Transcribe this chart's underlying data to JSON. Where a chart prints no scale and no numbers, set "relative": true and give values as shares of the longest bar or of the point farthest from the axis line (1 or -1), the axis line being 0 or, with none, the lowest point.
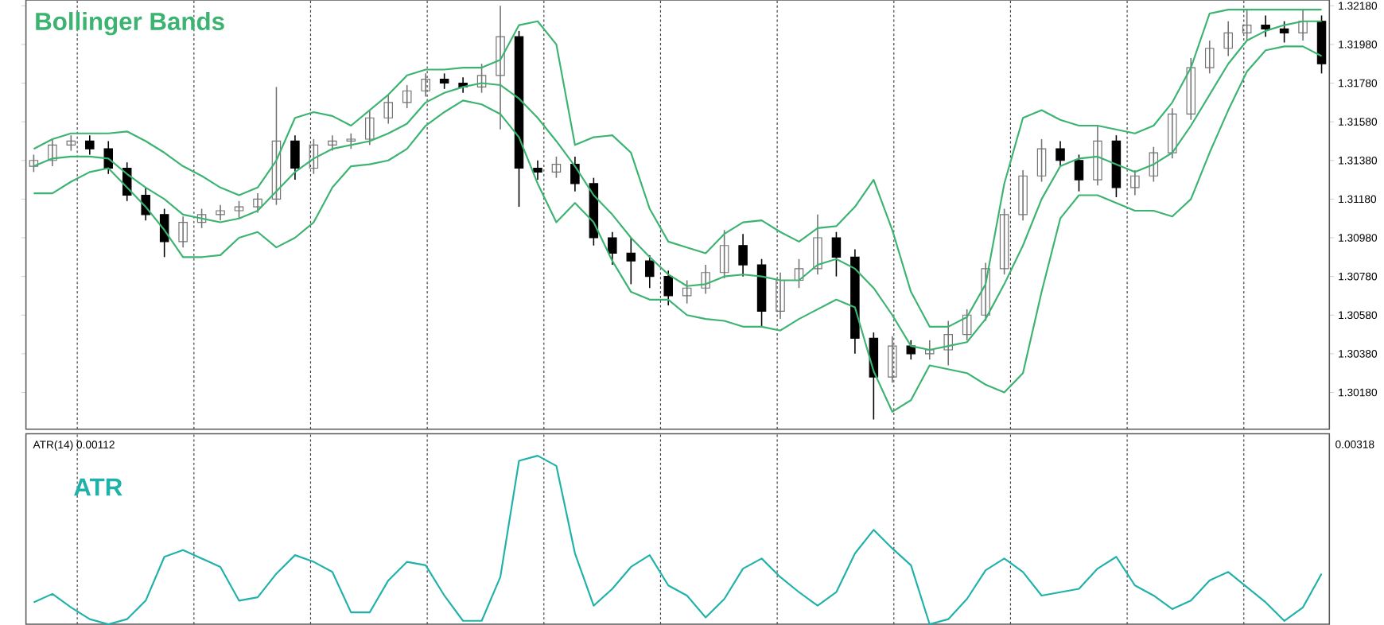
{
  "chart_data": [
    {
      "type": "candlestick",
      "title": "Bollinger Bands",
      "grid": "x",
      "categories": [
        null,
        null,
        null,
        null,
        null,
        null,
        null,
        null,
        null,
        null,
        null,
        null,
        null,
        null,
        null,
        null,
        null,
        null,
        null,
        null,
        null,
        null,
        null,
        null,
        null,
        null,
        null,
        null,
        null,
        null,
        null,
        null,
        null,
        null,
        null,
        null,
        null,
        null,
        null,
        null,
        null,
        null,
        null,
        null,
        null,
        null,
        null,
        null,
        null,
        null,
        null,
        null,
        null,
        null,
        null,
        null,
        null,
        null,
        null,
        null,
        null,
        null,
        null,
        null,
        null,
        null,
        null,
        null,
        null,
        null
      ],
      "ohlc": [
        [
          1.3135,
          1.3141,
          1.3132,
          1.3138
        ],
        [
          1.3138,
          1.3149,
          1.3135,
          1.3146
        ],
        [
          1.3146,
          1.3151,
          1.3143,
          1.3148
        ],
        [
          1.3148,
          1.3151,
          1.3141,
          1.3144
        ],
        [
          1.3144,
          1.3148,
          1.3131,
          1.3134
        ],
        [
          1.3134,
          1.3137,
          1.3117,
          1.312
        ],
        [
          1.312,
          1.3124,
          1.3107,
          1.311
        ],
        [
          1.311,
          1.3113,
          1.3088,
          1.3096
        ],
        [
          1.3096,
          1.3109,
          1.3093,
          1.3106
        ],
        [
          1.3106,
          1.3113,
          1.3103,
          1.311
        ],
        [
          1.311,
          1.3115,
          1.3107,
          1.3112
        ],
        [
          1.3112,
          1.3117,
          1.3108,
          1.3114
        ],
        [
          1.3114,
          1.3121,
          1.3111,
          1.3118
        ],
        [
          1.3118,
          1.3176,
          1.3115,
          1.3148
        ],
        [
          1.3148,
          1.3151,
          1.3128,
          1.3134
        ],
        [
          1.3134,
          1.3149,
          1.3131,
          1.3146
        ],
        [
          1.3146,
          1.3151,
          1.3143,
          1.3148
        ],
        [
          1.3148,
          1.3152,
          1.3144,
          1.3149
        ],
        [
          1.3149,
          1.3164,
          1.3146,
          1.316
        ],
        [
          1.316,
          1.3172,
          1.3157,
          1.3168
        ],
        [
          1.3168,
          1.3177,
          1.3165,
          1.3174
        ],
        [
          1.3174,
          1.3183,
          1.3171,
          1.318
        ],
        [
          1.318,
          1.3183,
          1.3175,
          1.3178
        ],
        [
          1.3178,
          1.3181,
          1.3173,
          1.3176
        ],
        [
          1.3176,
          1.3188,
          1.3173,
          1.3182
        ],
        [
          1.3182,
          1.3218,
          1.3154,
          1.3202
        ],
        [
          1.3202,
          1.3205,
          1.3114,
          1.3134
        ],
        [
          1.3134,
          1.3138,
          1.3128,
          1.3132
        ],
        [
          1.3132,
          1.314,
          1.3129,
          1.3136
        ],
        [
          1.3136,
          1.314,
          1.3122,
          1.3126
        ],
        [
          1.3126,
          1.3129,
          1.3094,
          1.3098
        ],
        [
          1.3098,
          1.3101,
          1.3084,
          1.309
        ],
        [
          1.309,
          1.3098,
          1.3074,
          1.3086
        ],
        [
          1.3086,
          1.3089,
          1.3072,
          1.3078
        ],
        [
          1.3078,
          1.3081,
          1.3063,
          1.3068
        ],
        [
          1.3068,
          1.3076,
          1.3064,
          1.3072
        ],
        [
          1.3072,
          1.3084,
          1.3069,
          1.308
        ],
        [
          1.308,
          1.3102,
          1.3077,
          1.3094
        ],
        [
          1.3094,
          1.31,
          1.3078,
          1.3084
        ],
        [
          1.3084,
          1.3087,
          1.3052,
          1.306
        ],
        [
          1.306,
          1.308,
          1.3056,
          1.3076
        ],
        [
          1.3076,
          1.3087,
          1.3072,
          1.3082
        ],
        [
          1.3082,
          1.311,
          1.3079,
          1.3098
        ],
        [
          1.3098,
          1.3101,
          1.3078,
          1.3088
        ],
        [
          1.3088,
          1.3092,
          1.3038,
          1.3046
        ],
        [
          1.3046,
          1.3049,
          1.3004,
          1.3026
        ],
        [
          1.3026,
          1.3047,
          1.3023,
          1.3042
        ],
        [
          1.3042,
          1.3045,
          1.3035,
          1.3038
        ],
        [
          1.3038,
          1.3045,
          1.3035,
          1.304
        ],
        [
          1.304,
          1.3055,
          1.3032,
          1.3048
        ],
        [
          1.3048,
          1.3061,
          1.3045,
          1.3058
        ],
        [
          1.3058,
          1.3085,
          1.3055,
          1.3082
        ],
        [
          1.3082,
          1.3113,
          1.3079,
          1.311
        ],
        [
          1.311,
          1.3133,
          1.3107,
          1.313
        ],
        [
          1.313,
          1.3149,
          1.3127,
          1.3144
        ],
        [
          1.3144,
          1.3148,
          1.3135,
          1.3138
        ],
        [
          1.3138,
          1.3141,
          1.3122,
          1.3128
        ],
        [
          1.3128,
          1.3156,
          1.3125,
          1.3148
        ],
        [
          1.3148,
          1.3151,
          1.3119,
          1.3124
        ],
        [
          1.3124,
          1.3133,
          1.312,
          1.313
        ],
        [
          1.313,
          1.3145,
          1.3127,
          1.3142
        ],
        [
          1.3142,
          1.3165,
          1.3139,
          1.3162
        ],
        [
          1.3162,
          1.3191,
          1.3159,
          1.3186
        ],
        [
          1.3186,
          1.32,
          1.3183,
          1.3196
        ],
        [
          1.3196,
          1.321,
          1.3192,
          1.3204
        ],
        [
          1.3204,
          1.3216,
          1.32,
          1.3208
        ],
        [
          1.3208,
          1.3213,
          1.3202,
          1.3206
        ],
        [
          1.3206,
          1.321,
          1.3199,
          1.3204
        ],
        [
          1.3204,
          1.3216,
          1.32,
          1.321
        ],
        [
          1.321,
          1.3213,
          1.3183,
          1.3188
        ]
      ],
      "ylim": [
        1.2999,
        1.3221
      ],
      "yticks": [
        {
          "value": 1.3018,
          "label": "1.30180"
        },
        {
          "value": 1.3038,
          "label": "1.30380"
        },
        {
          "value": 1.3058,
          "label": "1.30580"
        },
        {
          "value": 1.3078,
          "label": "1.30780"
        },
        {
          "value": 1.3098,
          "label": "1.30980"
        },
        {
          "value": 1.3118,
          "label": "1.31180"
        },
        {
          "value": 1.3138,
          "label": "1.31380"
        },
        {
          "value": 1.3158,
          "label": "1.31580"
        },
        {
          "value": 1.3178,
          "label": "1.31780"
        },
        {
          "value": 1.3198,
          "label": "1.31980"
        },
        {
          "value": 1.3218,
          "label": "1.32180"
        }
      ],
      "series": [
        {
          "type": "line",
          "color": "#3cb371",
          "values": [
            1.3144,
            1.3149,
            1.3152,
            1.3152,
            1.3152,
            1.3153,
            1.3148,
            1.3142,
            1.3135,
            1.313,
            1.3124,
            1.312,
            1.3124,
            1.3138,
            1.316,
            1.3163,
            1.3161,
            1.3156,
            1.3164,
            1.3172,
            1.3182,
            1.3185,
            1.3185,
            1.3186,
            1.3186,
            1.319,
            1.3208,
            1.321,
            1.3198,
            1.3146,
            1.315,
            1.3151,
            1.3142,
            1.3113,
            1.3096,
            1.3093,
            1.309,
            1.31,
            1.3106,
            1.3107,
            1.3101,
            1.3096,
            1.3103,
            1.3104,
            1.3114,
            1.3128,
            1.3102,
            1.307,
            1.3052,
            1.3052,
            1.3057,
            1.3074,
            1.3126,
            1.316,
            1.3164,
            1.3159,
            1.3156,
            1.3156,
            1.3154,
            1.3152,
            1.3156,
            1.3168,
            1.3186,
            1.3214,
            1.3216,
            1.3216,
            1.3216,
            1.3216,
            1.3216,
            1.3216
          ]
        },
        {
          "type": "line",
          "color": "#3cb371",
          "values": [
            1.3135,
            1.3139,
            1.314,
            1.314,
            1.3139,
            1.3131,
            1.3124,
            1.3118,
            1.311,
            1.3108,
            1.3106,
            1.3108,
            1.3112,
            1.3122,
            1.3132,
            1.3139,
            1.3144,
            1.3146,
            1.3148,
            1.3152,
            1.3157,
            1.3168,
            1.3173,
            1.3176,
            1.3178,
            1.3177,
            1.317,
            1.316,
            1.3148,
            1.3135,
            1.312,
            1.311,
            1.3098,
            1.3088,
            1.3079,
            1.3073,
            1.3074,
            1.3078,
            1.3079,
            1.3078,
            1.3076,
            1.3076,
            1.3084,
            1.3087,
            1.3082,
            1.3072,
            1.3058,
            1.3042,
            1.304,
            1.3042,
            1.3044,
            1.3056,
            1.3074,
            1.3094,
            1.3118,
            1.3135,
            1.3139,
            1.314,
            1.3136,
            1.3132,
            1.3136,
            1.3142,
            1.3156,
            1.3172,
            1.3188,
            1.32,
            1.3205,
            1.3208,
            1.321,
            1.321
          ]
        },
        {
          "type": "line",
          "color": "#3cb371",
          "values": [
            1.3121,
            1.3121,
            1.3127,
            1.3132,
            1.3134,
            1.3124,
            1.3114,
            1.3102,
            1.3088,
            1.3088,
            1.3089,
            1.3098,
            1.3101,
            1.3093,
            1.3098,
            1.3106,
            1.3124,
            1.3135,
            1.3136,
            1.3138,
            1.3144,
            1.3156,
            1.3163,
            1.3169,
            1.3167,
            1.3162,
            1.315,
            1.3126,
            1.3106,
            1.3116,
            1.3106,
            1.3086,
            1.307,
            1.3066,
            1.3066,
            1.3058,
            1.3056,
            1.3055,
            1.3052,
            1.3052,
            1.305,
            1.3056,
            1.3061,
            1.3066,
            1.3062,
            1.3029,
            1.3008,
            1.3014,
            1.3032,
            1.303,
            1.3028,
            1.3022,
            1.3018,
            1.3028,
            1.307,
            1.3108,
            1.312,
            1.312,
            1.3116,
            1.3112,
            1.3112,
            1.3109,
            1.3118,
            1.3142,
            1.3164,
            1.3184,
            1.3195,
            1.3197,
            1.3197,
            1.3192
          ]
        }
      ]
    },
    {
      "type": "line",
      "title": "ATR",
      "relative": true,
      "grid": "x",
      "categories": [
        null,
        null,
        null,
        null,
        null,
        null,
        null,
        null,
        null,
        null,
        null,
        null,
        null,
        null,
        null,
        null,
        null,
        null,
        null,
        null,
        null,
        null,
        null,
        null,
        null,
        null,
        null,
        null,
        null,
        null,
        null,
        null,
        null,
        null,
        null,
        null,
        null,
        null,
        null,
        null,
        null,
        null,
        null,
        null,
        null,
        null,
        null,
        null,
        null,
        null,
        null,
        null,
        null,
        null,
        null,
        null,
        null,
        null,
        null,
        null,
        null,
        null,
        null,
        null,
        null,
        null,
        null,
        null,
        null,
        null
      ],
      "series": [
        {
          "color": "#20b2aa",
          "values": [
            0.13,
            0.18,
            0.1,
            0.03,
            0,
            0.03,
            0.14,
            0.4,
            0.44,
            0.39,
            0.34,
            0.14,
            0.16,
            0.3,
            0.41,
            0.37,
            0.31,
            0.07,
            0.07,
            0.26,
            0.37,
            0.35,
            0.17,
            0.02,
            0.02,
            0.28,
            0.97,
            1,
            0.94,
            0.42,
            0.11,
            0.21,
            0.34,
            0.41,
            0.23,
            0.17,
            0.04,
            0.15,
            0.33,
            0.39,
            0.28,
            0.19,
            0.11,
            0.19,
            0.42,
            0.56,
            0.45,
            0.35,
            0,
            0.03,
            0.15,
            0.32,
            0.39,
            0.31,
            0.17,
            0.19,
            0.21,
            0.33,
            0.4,
            0.23,
            0.17,
            0.09,
            0.14,
            0.26,
            0.31,
            0.22,
            0.13,
            0.02,
            0.1,
            0.3
          ]
        }
      ],
      "annotations": [
        "ATR(14) 0.00112",
        "0.00318"
      ]
    }
  ]
}
